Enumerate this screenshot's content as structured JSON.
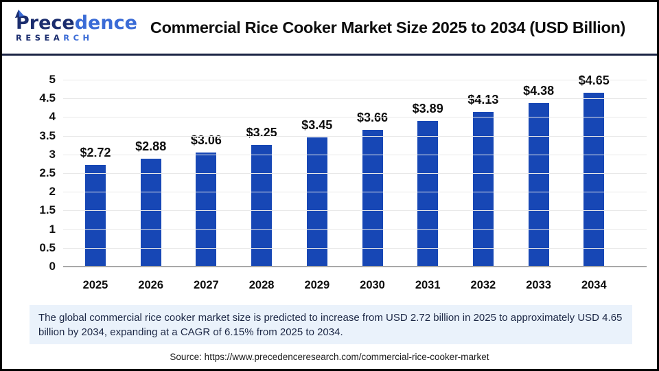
{
  "header": {
    "logo": {
      "word_dark": "Prece",
      "word_light": "dence",
      "sub_dark": "RESEA",
      "sub_light": "RCH"
    },
    "title": "Commercial Rice Cooker Market Size 2025 to 2034 (USD Billion)"
  },
  "chart_data": {
    "type": "bar",
    "title": "Commercial Rice Cooker Market Size 2025 to 2034 (USD Billion)",
    "categories": [
      "2025",
      "2026",
      "2027",
      "2028",
      "2029",
      "2030",
      "2031",
      "2032",
      "2033",
      "2034"
    ],
    "values": [
      2.72,
      2.88,
      3.06,
      3.25,
      3.45,
      3.66,
      3.89,
      4.13,
      4.38,
      4.65
    ],
    "value_labels": [
      "$2.72",
      "$2.88",
      "$3.06",
      "$3.25",
      "$3.45",
      "$3.66",
      "$3.89",
      "$4.13",
      "$4.38",
      "$4.65"
    ],
    "unit": "USD Billion",
    "ylim": [
      0,
      5
    ],
    "ytick_step": 0.5,
    "grid": true,
    "legend": "none",
    "bar_color": "#1747B5"
  },
  "footer": {
    "description": "The global commercial rice cooker market size is predicted to increase from USD 2.72 billion in 2025 to approximately USD 4.65 billion by 2034, expanding at a CAGR of 6.15% from 2025 to 2034.",
    "source": "Source: https://www.precedenceresearch.com/commercial-rice-cooker-market"
  },
  "colors": {
    "bar": "#1747B5",
    "header_rule": "#1B2444",
    "description_bg": "#EAF2FB",
    "gridline": "#E8E8E8",
    "axis_line": "#A8A8A8",
    "logo_dark": "#1B2D6E",
    "logo_light": "#3A6BD6"
  }
}
